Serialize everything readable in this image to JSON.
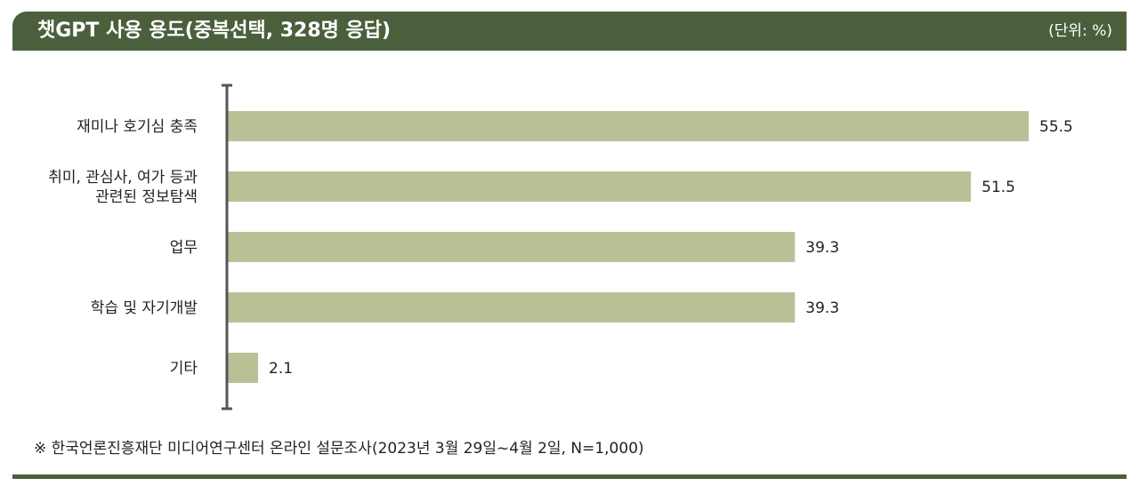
{
  "header": {
    "title": "챗GPT 사용 용도(중복선택, 328명 응답)",
    "unit": "(단위: %)"
  },
  "chart_data": {
    "type": "bar",
    "orientation": "horizontal",
    "title": "챗GPT 사용 용도(중복선택, 328명 응답)",
    "unit": "%",
    "categories": [
      [
        "재미나 호기심 충족"
      ],
      [
        "취미, 관심사, 여가 등과",
        "관련된 정보탐색"
      ],
      [
        "업무"
      ],
      [
        "학습 및 자기개발"
      ],
      [
        "기타"
      ]
    ],
    "values": [
      55.5,
      51.5,
      39.3,
      39.3,
      2.1
    ],
    "value_labels": [
      "55.5",
      "51.5",
      "39.3",
      "39.3",
      "2.1"
    ],
    "xlim": [
      0,
      55.5
    ],
    "grid": false,
    "bar_color": "#b8c196",
    "axis_color": "#555555"
  },
  "footer": {
    "source": "※ 한국언론진흥재단 미디어연구센터 온라인 설문조사(2023년 3월 29일~4월 2일, N=1,000)"
  }
}
